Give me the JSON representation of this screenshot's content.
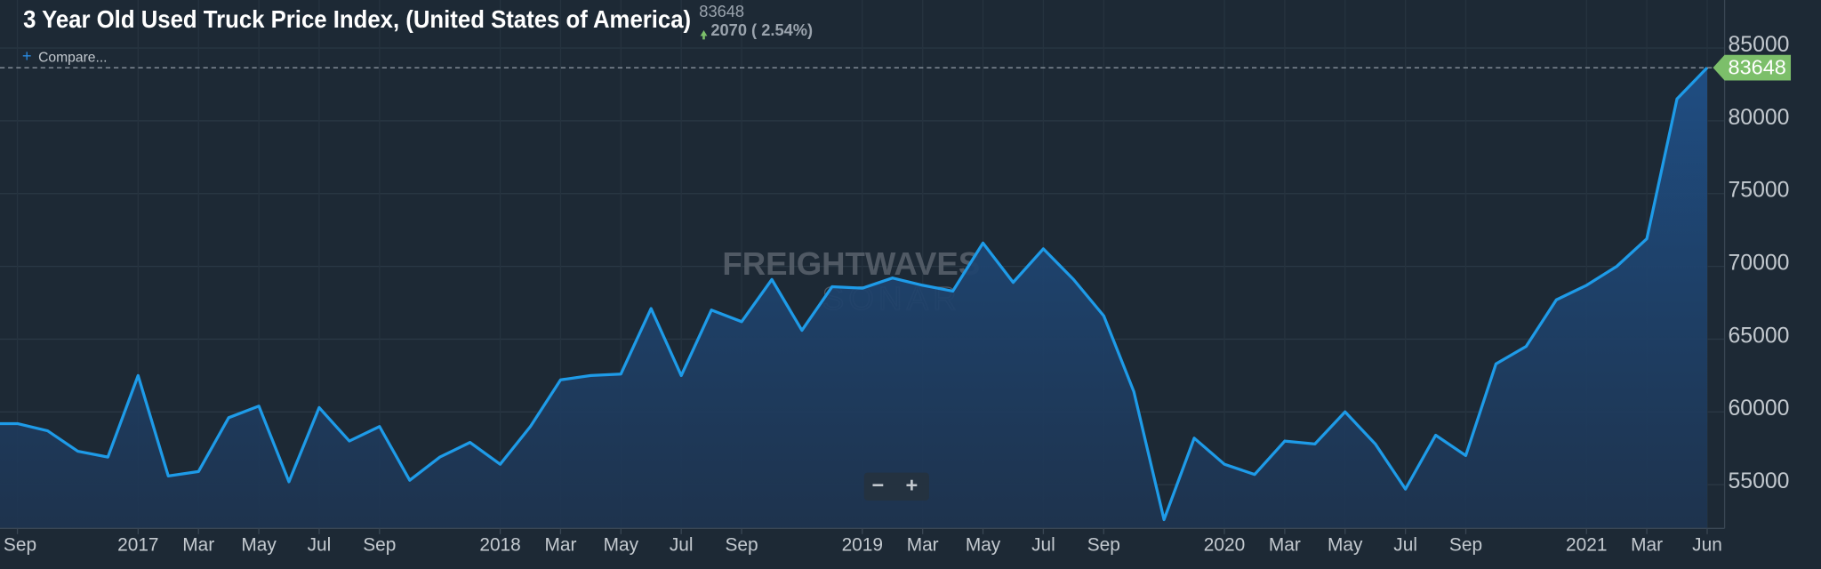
{
  "header": {
    "compare": "Compare...",
    "last_value": "83648",
    "change": "2070 ( 2.54%)"
  },
  "watermark": {
    "brand": "FREIGHTWAVES",
    "product": "SONAR"
  },
  "zoom": {
    "out": "−",
    "in": "+"
  },
  "chart_data": {
    "type": "line",
    "title": "3 Year Old Used Truck Price Index, (United States of America)",
    "categories": [
      "Sep",
      null,
      null,
      null,
      "2017",
      null,
      "Mar",
      null,
      "May",
      null,
      "Jul",
      null,
      "Sep",
      null,
      null,
      null,
      "2018",
      null,
      "Mar",
      null,
      "May",
      null,
      "Jul",
      null,
      "Sep",
      null,
      null,
      null,
      "2019",
      null,
      "Mar",
      null,
      "May",
      null,
      "Jul",
      null,
      "Sep",
      null,
      null,
      null,
      "2020",
      null,
      "Mar",
      null,
      "May",
      null,
      "Jul",
      null,
      "Sep",
      null,
      null,
      null,
      "2021",
      null,
      "Mar",
      null,
      "Jun"
    ],
    "series": [
      {
        "name": "3 Year Old Used Truck Price Index",
        "color": "#1e9be8",
        "values": [
          59200,
          58700,
          57300,
          56900,
          62500,
          55600,
          55900,
          59600,
          60400,
          55200,
          60300,
          58000,
          59000,
          55300,
          56900,
          57900,
          56400,
          59000,
          62200,
          62500,
          62600,
          67100,
          62500,
          67000,
          66200,
          69100,
          65600,
          68600,
          68500,
          69200,
          68700,
          68300,
          71600,
          68900,
          71200,
          69100,
          66600,
          61400,
          52600,
          58200,
          56400,
          55700,
          58000,
          57800,
          60000,
          57800,
          54700,
          58400,
          57000,
          63300,
          64500,
          67700,
          68700,
          70000,
          71900,
          81500,
          83648
        ]
      }
    ],
    "ylim": [
      52000,
      88300
    ],
    "yticks": [
      55000,
      60000,
      65000,
      70000,
      75000,
      80000,
      85000
    ],
    "grid": true,
    "last_value_label": "83648",
    "last_value_color": "#7cbf6a"
  }
}
